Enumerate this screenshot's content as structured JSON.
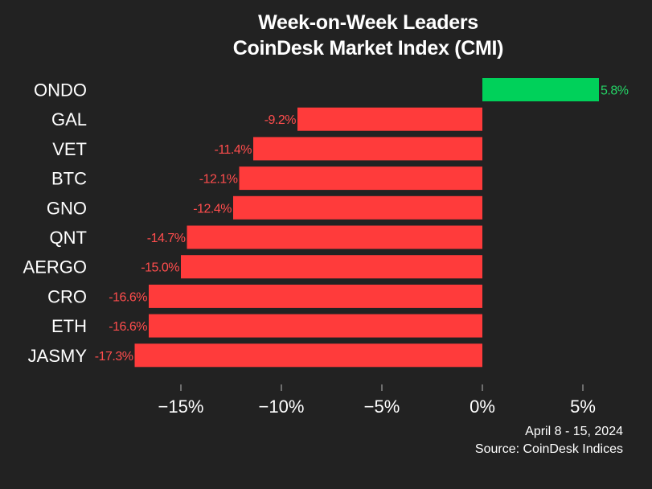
{
  "chart_data": {
    "type": "bar",
    "orientation": "horizontal",
    "title": "Week-on-Week Leaders",
    "subtitle": "CoinDesk Market Index (CMI)",
    "categories": [
      "ONDO",
      "GAL",
      "VET",
      "BTC",
      "GNO",
      "QNT",
      "AERGO",
      "CRO",
      "ETH",
      "JASMY"
    ],
    "values": [
      5.8,
      -9.2,
      -11.4,
      -12.1,
      -12.4,
      -14.7,
      -15.0,
      -16.6,
      -16.6,
      -17.3
    ],
    "value_labels": [
      "5.8%",
      "-9.2%",
      "-11.4%",
      "-12.1%",
      "-12.4%",
      "-14.7%",
      "-15.0%",
      "-16.6%",
      "-16.6%",
      "-17.3%"
    ],
    "xticks": [
      -15,
      -10,
      -5,
      0,
      5
    ],
    "xtick_labels": [
      "−15%",
      "−10%",
      "−5%",
      "0%",
      "5%"
    ],
    "xlim": [
      -17.3,
      5.8
    ],
    "grid": false,
    "colors": {
      "positive": "#00d15a",
      "negative": "#ff3b3b",
      "positive_label": "#25d366",
      "negative_label": "#ff4d4d",
      "background": "#222222",
      "text": "#ffffff"
    }
  },
  "footer": {
    "date_range": "April 8 - 15, 2024",
    "source": "Source: CoinDesk Indices"
  }
}
